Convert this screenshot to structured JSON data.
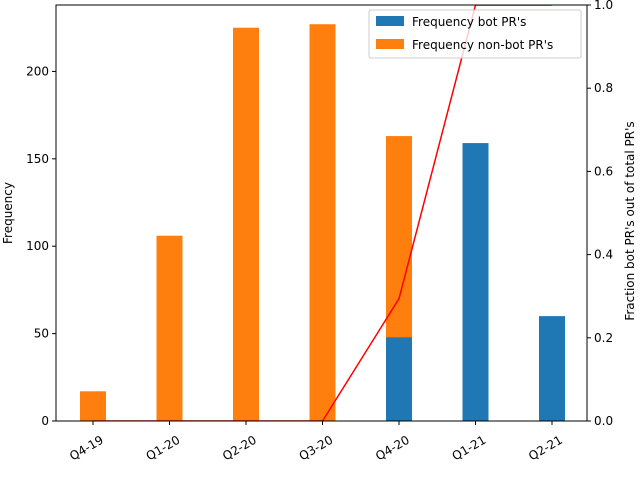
{
  "chart_data": {
    "type": "bar",
    "categories": [
      "Q4-19",
      "Q1-20",
      "Q2-20",
      "Q3-20",
      "Q4-20",
      "Q1-21",
      "Q2-21"
    ],
    "series": [
      {
        "name": "Frequency bot PR's",
        "values": [
          0,
          0,
          0,
          0,
          48,
          159,
          60
        ],
        "color": "#1f77b4"
      },
      {
        "name": "Frequency non-bot PR's",
        "values": [
          17,
          106,
          225,
          227,
          115,
          0,
          0
        ],
        "color": "#ff7f0e"
      }
    ],
    "stacked": true,
    "line_series": {
      "values": [
        0,
        0,
        0,
        0,
        0.294,
        1.0,
        1.0
      ],
      "color": "#ff0000",
      "axis": "right"
    },
    "title": "",
    "xlabel": "",
    "ylabel": "Frequency",
    "y2label": "Fraction bot PR's out of total PR's",
    "ylim": [
      0,
      238
    ],
    "y2lim": [
      0,
      1
    ],
    "yticks": [
      0,
      50,
      100,
      150,
      200
    ],
    "y2ticks": [
      0.0,
      0.2,
      0.4,
      0.6,
      0.8,
      1.0
    ],
    "legend_position": "top-right",
    "grid": false
  }
}
